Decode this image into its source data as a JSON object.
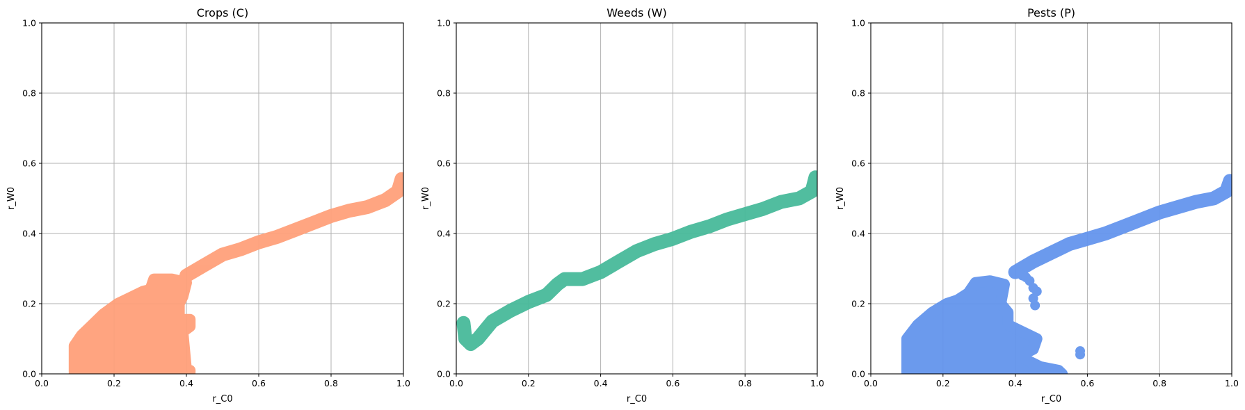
{
  "chart_data": [
    {
      "type": "scatter",
      "title": "Crops (C)",
      "xlabel": "r_C0",
      "ylabel": "r_W0",
      "xlim": [
        0,
        1
      ],
      "ylim": [
        0,
        1
      ],
      "xticks": [
        "0.0",
        "0.2",
        "0.4",
        "0.6",
        "0.8",
        "1.0"
      ],
      "yticks": [
        "0.0",
        "0.2",
        "0.4",
        "0.6",
        "0.8",
        "1.0"
      ],
      "grid": true,
      "color": "#ffa07a",
      "band": [
        [
          0.4,
          0.28
        ],
        [
          0.45,
          0.31
        ],
        [
          0.5,
          0.34
        ],
        [
          0.55,
          0.355
        ],
        [
          0.6,
          0.375
        ],
        [
          0.65,
          0.39
        ],
        [
          0.7,
          0.41
        ],
        [
          0.75,
          0.43
        ],
        [
          0.8,
          0.45
        ],
        [
          0.85,
          0.465
        ],
        [
          0.9,
          0.475
        ],
        [
          0.95,
          0.495
        ],
        [
          0.985,
          0.52
        ],
        [
          0.995,
          0.555
        ]
      ],
      "region": [
        [
          0.09,
          0.0
        ],
        [
          0.41,
          0.0
        ],
        [
          0.41,
          0.01
        ],
        [
          0.4,
          0.01
        ],
        [
          0.39,
          0.12
        ],
        [
          0.41,
          0.135
        ],
        [
          0.41,
          0.155
        ],
        [
          0.38,
          0.155
        ],
        [
          0.38,
          0.2
        ],
        [
          0.39,
          0.22
        ],
        [
          0.4,
          0.26
        ],
        [
          0.38,
          0.265
        ],
        [
          0.36,
          0.27
        ],
        [
          0.31,
          0.27
        ],
        [
          0.3,
          0.24
        ],
        [
          0.28,
          0.235
        ],
        [
          0.24,
          0.215
        ],
        [
          0.21,
          0.2
        ],
        [
          0.17,
          0.17
        ],
        [
          0.14,
          0.14
        ],
        [
          0.11,
          0.11
        ],
        [
          0.09,
          0.08
        ]
      ]
    },
    {
      "type": "scatter",
      "title": "Weeds (W)",
      "xlabel": "r_C0",
      "ylabel": "r_W0",
      "xlim": [
        0,
        1
      ],
      "ylim": [
        0,
        1
      ],
      "xticks": [
        "0.0",
        "0.2",
        "0.4",
        "0.6",
        "0.8",
        "1.0"
      ],
      "yticks": [
        "0.0",
        "0.2",
        "0.4",
        "0.6",
        "0.8",
        "1.0"
      ],
      "grid": true,
      "color": "#48b99a",
      "band": [
        [
          0.02,
          0.145
        ],
        [
          0.025,
          0.1
        ],
        [
          0.04,
          0.085
        ],
        [
          0.06,
          0.1
        ],
        [
          0.08,
          0.125
        ],
        [
          0.1,
          0.15
        ],
        [
          0.15,
          0.18
        ],
        [
          0.2,
          0.205
        ],
        [
          0.25,
          0.225
        ],
        [
          0.28,
          0.255
        ],
        [
          0.3,
          0.27
        ],
        [
          0.35,
          0.27
        ],
        [
          0.4,
          0.29
        ],
        [
          0.45,
          0.32
        ],
        [
          0.5,
          0.35
        ],
        [
          0.55,
          0.37
        ],
        [
          0.6,
          0.385
        ],
        [
          0.65,
          0.405
        ],
        [
          0.7,
          0.42
        ],
        [
          0.75,
          0.44
        ],
        [
          0.8,
          0.455
        ],
        [
          0.85,
          0.47
        ],
        [
          0.9,
          0.49
        ],
        [
          0.95,
          0.5
        ],
        [
          0.985,
          0.52
        ],
        [
          0.995,
          0.56
        ]
      ],
      "region": []
    },
    {
      "type": "scatter",
      "title": "Pests (P)",
      "xlabel": "r_C0",
      "ylabel": "r_W0",
      "xlim": [
        0,
        1
      ],
      "ylim": [
        0,
        1
      ],
      "xticks": [
        "0.0",
        "0.2",
        "0.4",
        "0.6",
        "0.8",
        "1.0"
      ],
      "yticks": [
        "0.0",
        "0.2",
        "0.4",
        "0.6",
        "0.8",
        "1.0"
      ],
      "grid": true,
      "color": "#6495ed",
      "band": [
        [
          0.4,
          0.29
        ],
        [
          0.45,
          0.32
        ],
        [
          0.5,
          0.345
        ],
        [
          0.55,
          0.37
        ],
        [
          0.6,
          0.385
        ],
        [
          0.65,
          0.4
        ],
        [
          0.7,
          0.42
        ],
        [
          0.75,
          0.44
        ],
        [
          0.8,
          0.46
        ],
        [
          0.85,
          0.475
        ],
        [
          0.9,
          0.49
        ],
        [
          0.95,
          0.5
        ],
        [
          0.985,
          0.52
        ],
        [
          0.995,
          0.55
        ]
      ],
      "region": [
        [
          0.1,
          0.0
        ],
        [
          0.53,
          0.0
        ],
        [
          0.52,
          0.01
        ],
        [
          0.47,
          0.02
        ],
        [
          0.44,
          0.035
        ],
        [
          0.41,
          0.05
        ],
        [
          0.45,
          0.07
        ],
        [
          0.46,
          0.1
        ],
        [
          0.42,
          0.12
        ],
        [
          0.38,
          0.14
        ],
        [
          0.38,
          0.175
        ],
        [
          0.36,
          0.2
        ],
        [
          0.37,
          0.255
        ],
        [
          0.33,
          0.265
        ],
        [
          0.29,
          0.26
        ],
        [
          0.27,
          0.23
        ],
        [
          0.24,
          0.21
        ],
        [
          0.21,
          0.2
        ],
        [
          0.17,
          0.175
        ],
        [
          0.13,
          0.14
        ],
        [
          0.1,
          0.1
        ]
      ],
      "extra_points": [
        [
          0.4,
          0.295
        ],
        [
          0.41,
          0.29
        ],
        [
          0.42,
          0.28
        ],
        [
          0.43,
          0.275
        ],
        [
          0.44,
          0.265
        ],
        [
          0.45,
          0.245
        ],
        [
          0.46,
          0.235
        ],
        [
          0.45,
          0.215
        ],
        [
          0.455,
          0.195
        ],
        [
          0.58,
          0.055
        ],
        [
          0.58,
          0.065
        ]
      ]
    }
  ]
}
